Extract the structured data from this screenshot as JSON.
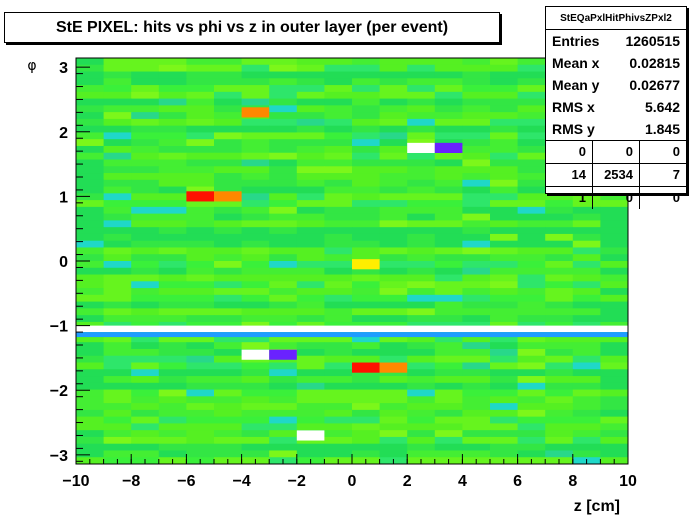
{
  "title": "StE PIXEL: hits vs phi vs z in outer layer (per event)",
  "stats": {
    "name": "StEQaPxlHitPhivsZPxl2",
    "entries_label": "Entries",
    "entries": "1260515",
    "meanx_label": "Mean x",
    "meanx": "0.02815",
    "meany_label": "Mean y",
    "meany": "0.02677",
    "rmsx_label": "RMS x",
    "rmsx": "5.642",
    "rmsy_label": "RMS y",
    "rmsy": "1.845",
    "grid": [
      [
        "0",
        "0",
        "0"
      ],
      [
        "14",
        "2534",
        "7"
      ],
      [
        "1",
        "0",
        "0"
      ]
    ]
  },
  "chart_data": {
    "type": "heatmap",
    "title": "StE PIXEL: hits vs phi vs z in outer layer (per event)",
    "xlabel": "z [cm]",
    "ylabel": "φ",
    "xlim": [
      -10,
      10
    ],
    "ylim": [
      -3.14159,
      3.14159
    ],
    "xticks": [
      -10,
      -8,
      -6,
      -4,
      -2,
      0,
      2,
      4,
      6,
      8,
      10
    ],
    "yticks": [
      -3,
      -2,
      -1,
      0,
      1,
      2,
      3
    ],
    "x_bins": 20,
    "y_bins": 60,
    "colors": {
      "low": "#1fd8ff",
      "mid": "#33ee33",
      "midhigh": "#99ff22",
      "high": "#ffee00",
      "higher": "#ff9900",
      "highest": "#ff1100",
      "dead_row": "#ffffff"
    },
    "typical_level": "green",
    "dead_phi_range": [
      -1.1,
      -1.0
    ],
    "hot_cells": [
      {
        "z": -3.5,
        "phi": 2.3,
        "level": "orange"
      },
      {
        "z": -5.5,
        "phi": 1.0,
        "level": "red"
      },
      {
        "z": -4.5,
        "phi": 1.0,
        "level": "orange"
      },
      {
        "z": 2.5,
        "phi": 1.75,
        "level": "white"
      },
      {
        "z": 3.5,
        "phi": 1.75,
        "level": "violet"
      },
      {
        "z": 0.5,
        "phi": -0.05,
        "level": "yellow"
      },
      {
        "z": -3.5,
        "phi": -1.45,
        "level": "white"
      },
      {
        "z": -2.5,
        "phi": -1.45,
        "level": "violet"
      },
      {
        "z": 0.5,
        "phi": -1.65,
        "level": "red"
      },
      {
        "z": 1.5,
        "phi": -1.65,
        "level": "orange"
      },
      {
        "z": -1.5,
        "phi": -2.7,
        "level": "white"
      },
      {
        "z": 8.5,
        "phi": 2.95,
        "level": "blue"
      }
    ]
  }
}
